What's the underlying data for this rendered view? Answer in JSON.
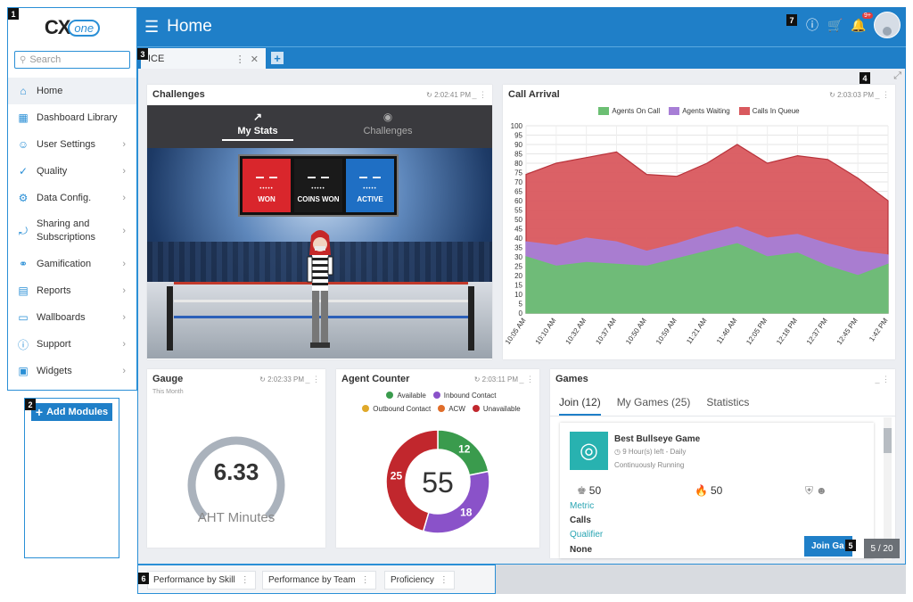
{
  "sidebar": {
    "logo_text": "CX",
    "logo_suffix": "one",
    "search_placeholder": "Search",
    "items": [
      {
        "label": "Home",
        "icon": "home-icon"
      },
      {
        "label": "Dashboard Library",
        "icon": "dashboard-icon"
      },
      {
        "label": "User Settings",
        "icon": "user-icon"
      },
      {
        "label": "Quality",
        "icon": "check-icon"
      },
      {
        "label": "Data Config.",
        "icon": "data-config-icon"
      },
      {
        "label": "Sharing and",
        "label2": "Subscriptions",
        "icon": "share-icon"
      },
      {
        "label": "Gamification",
        "icon": "gamepad-icon"
      },
      {
        "label": "Reports",
        "icon": "report-icon"
      },
      {
        "label": "Wallboards",
        "icon": "monitor-icon"
      },
      {
        "label": "Support",
        "icon": "help-icon"
      },
      {
        "label": "Widgets",
        "icon": "widget-icon"
      }
    ],
    "add_modules": "Add Modules"
  },
  "header": {
    "title": "Home",
    "notification_badge": "9+"
  },
  "tabs": {
    "active_tab": "ICE"
  },
  "markers": [
    "1",
    "2",
    "3",
    "4",
    "5",
    "6",
    "7"
  ],
  "challenges": {
    "title": "Challenges",
    "time": "2:02:41 PM",
    "tab_my_stats": "My Stats",
    "tab_challenges": "Challenges",
    "won_value": "– –",
    "coins_value": "– –",
    "active_value": "– –",
    "won": "WON",
    "coins_won": "COINS WON",
    "active": "ACTIVE"
  },
  "call_arrival": {
    "title": "Call Arrival",
    "time": "2:03:03 PM",
    "legend": [
      "Agents On Call",
      "Agents Waiting",
      "Calls In Queue"
    ],
    "colors": [
      "#6cbf73",
      "#a77ed6",
      "#d9595e"
    ]
  },
  "chart_data": {
    "type": "area",
    "x": [
      "10:05 AM",
      "10:10 AM",
      "10:32 AM",
      "10:37 AM",
      "10:50 AM",
      "10:59 AM",
      "11:21 AM",
      "11:46 AM",
      "12:05 PM",
      "12:18 PM",
      "12:37 PM",
      "12:45 PM",
      "1:42 PM"
    ],
    "series": [
      {
        "name": "Agents On Call",
        "values": [
          30,
          25,
          27,
          26,
          25,
          29,
          33,
          37,
          30,
          32,
          25,
          20,
          26
        ]
      },
      {
        "name": "Agents Waiting",
        "values": [
          38,
          36,
          40,
          38,
          33,
          37,
          42,
          46,
          40,
          42,
          37,
          33,
          31
        ]
      },
      {
        "name": "Calls In Queue",
        "values": [
          74,
          80,
          83,
          86,
          74,
          73,
          80,
          90,
          80,
          84,
          82,
          72,
          60
        ]
      }
    ],
    "ylim": [
      0,
      100
    ],
    "yticks": [
      0,
      5,
      10,
      15,
      20,
      25,
      30,
      35,
      40,
      45,
      50,
      55,
      60,
      65,
      70,
      75,
      80,
      85,
      90,
      95,
      100
    ],
    "stacked": false,
    "grid": true,
    "legend_position": "top"
  },
  "gauge": {
    "title": "Gauge",
    "time": "2:02:33 PM",
    "subtitle": "This Month",
    "value": "6.33",
    "unit": "AHT Minutes",
    "fill_fraction": 0.78
  },
  "agent_counter": {
    "title": "Agent Counter",
    "time": "2:03:11 PM",
    "legend": [
      {
        "label": "Available",
        "color": "#3a9b4d"
      },
      {
        "label": "Inbound Contact",
        "color": "#8a52c9"
      },
      {
        "label": "Outbound Contact",
        "color": "#e0a92a"
      },
      {
        "label": "ACW",
        "color": "#e06d2a"
      },
      {
        "label": "Unavailable",
        "color": "#c1272d"
      }
    ],
    "total": "55",
    "slices": [
      {
        "label": "12",
        "value": 12,
        "color": "#3a9b4d"
      },
      {
        "label": "18",
        "value": 18,
        "color": "#8a52c9"
      },
      {
        "label": "25",
        "value": 25,
        "color": "#c1272d"
      }
    ]
  },
  "games": {
    "title": "Games",
    "tab_join": "Join (12)",
    "tab_my_games": "My Games (25)",
    "tab_statistics": "Statistics",
    "card": {
      "name": "Best Bullseye Game",
      "time_left": "9 Hour(s) left - Daily",
      "status": "Continuously Running",
      "stat1": "50",
      "stat2": "50",
      "metric_label": "Metric",
      "metric_value": "Calls",
      "qualifier_label": "Qualifier",
      "qualifier_value": "None"
    },
    "join_button": "Join Ga",
    "pager": "5 / 20"
  },
  "bottom_tabs": [
    "Performance by Skill",
    "Performance by Team",
    "Proficiency"
  ]
}
